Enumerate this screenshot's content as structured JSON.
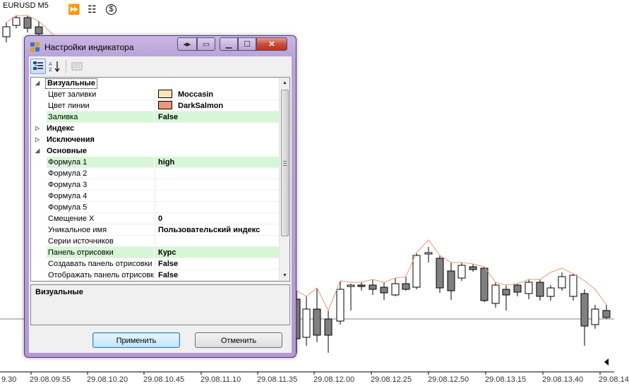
{
  "chart": {
    "symbol": "EURUSD M5",
    "tools": [
      {
        "name": "fast-forward-icon",
        "glyph": "⏩"
      },
      {
        "name": "chart-type-icon",
        "glyph": "☷"
      },
      {
        "name": "dollar-icon",
        "glyph": "$"
      }
    ],
    "time_labels": [
      "9.30",
      "29.08.09.55",
      "29.08.10.20",
      "29.08.10.45",
      "29.08.11.10",
      "29.08.11.35",
      "29.08.12.00",
      "29.08.12.25",
      "29.08.12.50",
      "29.08.13.15",
      "29.08.13.40",
      "29.08.14"
    ],
    "colors": {
      "bull": "#ffffff",
      "bear": "#808080",
      "line": "#e9967a",
      "grid": "#000000"
    }
  },
  "dialog": {
    "title": "Настройки индикатора",
    "toolbar": {
      "categorized": "categorized-icon",
      "alphabetical": "sort-az-icon",
      "pages": "property-pages-icon"
    },
    "rows": [
      {
        "type": "category",
        "label": "Визуальные",
        "expander": "◢"
      },
      {
        "type": "prop",
        "name": "Цвет заливки",
        "value": "Moccasin",
        "swatch": "#ffe4b5"
      },
      {
        "type": "prop",
        "name": "Цвет линии",
        "value": "DarkSalmon",
        "swatch": "#e9967a"
      },
      {
        "type": "prop",
        "name": "Заливка",
        "value": "False",
        "highlight": true
      },
      {
        "type": "category",
        "label": "Индекс",
        "expander": "▷"
      },
      {
        "type": "category",
        "label": "Исключения",
        "expander": "▷"
      },
      {
        "type": "category",
        "label": "Основные",
        "expander": "◢"
      },
      {
        "type": "prop",
        "name": "Формула 1",
        "value": "high",
        "highlight": true
      },
      {
        "type": "prop",
        "name": "Формула 2",
        "value": ""
      },
      {
        "type": "prop",
        "name": "Формула 3",
        "value": ""
      },
      {
        "type": "prop",
        "name": "Формула 4",
        "value": ""
      },
      {
        "type": "prop",
        "name": "Формула 5",
        "value": ""
      },
      {
        "type": "prop",
        "name": "Смещение X",
        "value": "0"
      },
      {
        "type": "prop",
        "name": "Уникальное имя",
        "value": "Пользовательский индекс"
      },
      {
        "type": "prop",
        "name": "Серии источников",
        "value": ""
      },
      {
        "type": "prop",
        "name": "Панель отрисовки",
        "value": "Курс",
        "highlight": true
      },
      {
        "type": "prop",
        "name": "Создавать панель отрисовки",
        "value": "False"
      },
      {
        "type": "prop",
        "name": "Отображать панель отрисовк",
        "value": "False"
      }
    ],
    "description": "Визуальные",
    "apply_label": "Применить",
    "cancel_label": "Отменить"
  }
}
